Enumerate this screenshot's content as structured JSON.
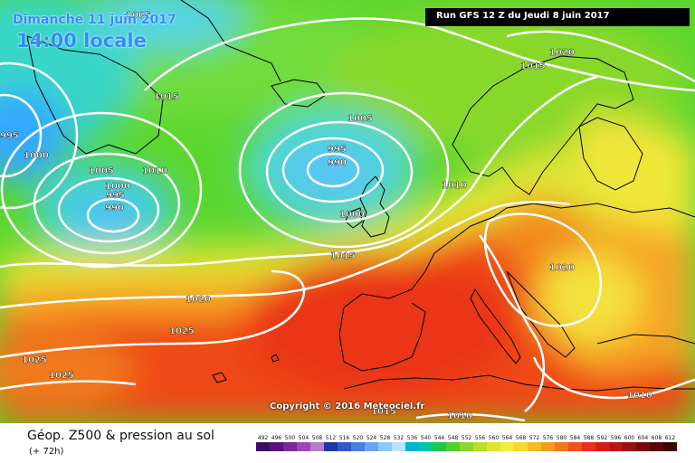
{
  "header": {
    "date": "Dimanche 11 juin 2017",
    "time": "14:00 locale",
    "run": "Run GFS 12 Z du Jeudi 8 juin 2017"
  },
  "footer": {
    "copyright": "Copyright © 2016 Meteociel.fr",
    "title": "Géop. Z500 & pression au sol",
    "subtitle": "(+ 72h)"
  },
  "scale": {
    "ticks": [
      "492",
      "496",
      "500",
      "504",
      "508",
      "512",
      "516",
      "520",
      "524",
      "528",
      "532",
      "536",
      "540",
      "544",
      "548",
      "552",
      "556",
      "560",
      "564",
      "568",
      "572",
      "576",
      "580",
      "584",
      "588",
      "592",
      "596",
      "600",
      "604",
      "608",
      "612"
    ],
    "colors": [
      "#3a0d5c",
      "#56157c",
      "#7a2a98",
      "#9a49b4",
      "#b87ccd",
      "#2137a6",
      "#3157c9",
      "#4a7fe2",
      "#66a6f0",
      "#8cc8f8",
      "#b6e5fb",
      "#00b4d8",
      "#00c9a0",
      "#19c94a",
      "#51cf2b",
      "#8ad62a",
      "#b9de2b",
      "#dde62e",
      "#f2ec3a",
      "#f7d92e",
      "#f6bb25",
      "#f59a1f",
      "#f2761a",
      "#ee5218",
      "#e93016",
      "#d81a15",
      "#bb1213",
      "#9a0d10",
      "#7a080b",
      "#5a0507",
      "#3a0204"
    ]
  },
  "map": {
    "colors": {
      "land_border": "#000000",
      "isobar": "#ffffff",
      "ocean_base": "#5cd62e"
    },
    "isobar_labels": [
      "1005",
      "1015",
      "1000",
      "995",
      "1005",
      "1010",
      "1000",
      "995",
      "990",
      "995",
      "990",
      "1000",
      "1005",
      "1015",
      "1020",
      "1015",
      "1010",
      "1020",
      "1020",
      "1025",
      "1025",
      "1025",
      "1010",
      "1010",
      "1015"
    ]
  }
}
